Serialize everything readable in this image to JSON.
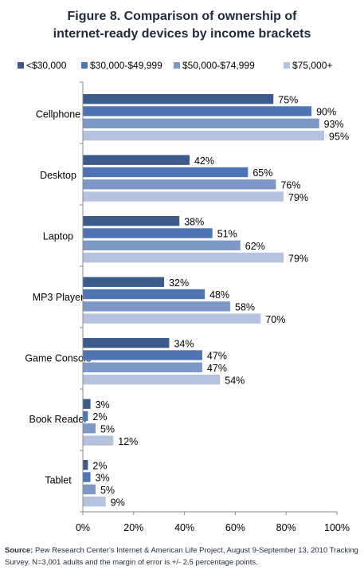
{
  "title_line1": "Figure 8. Comparison of ownership of",
  "title_line2": "internet-ready devices by income brackets",
  "source_label": "Source:",
  "source_text": "Pew Research Center's Internet & American Life Project, August 9-September 13, 2010 Tracking Survey. N=3,001 adults and the margin of error is +/- 2.5 percentage points.",
  "colors": {
    "s1": "#3c5b8a",
    "s2": "#4f74b3",
    "s3": "#7d98c7",
    "s4": "#b5c3de"
  },
  "chart_data": {
    "type": "bar",
    "orientation": "horizontal",
    "categories": [
      "Cellphone",
      "Desktop",
      "Laptop",
      "MP3 Player",
      "Game Console",
      "Book Reader",
      "Tablet"
    ],
    "series": [
      {
        "name": "<$30,000",
        "values": [
          75,
          42,
          38,
          32,
          34,
          3,
          2
        ]
      },
      {
        "name": "$30,000-$49,999",
        "values": [
          90,
          65,
          51,
          48,
          47,
          2,
          3
        ]
      },
      {
        "name": "$50,000-$74,999",
        "values": [
          93,
          76,
          62,
          58,
          47,
          5,
          5
        ]
      },
      {
        "name": "$75,000+",
        "values": [
          95,
          79,
          79,
          70,
          54,
          12,
          9
        ]
      }
    ],
    "xlim": [
      0,
      100
    ],
    "xticks": [
      "0%",
      "20%",
      "40%",
      "60%",
      "80%",
      "100%"
    ],
    "value_suffix": "%",
    "legend_position": "top",
    "grid": false
  }
}
